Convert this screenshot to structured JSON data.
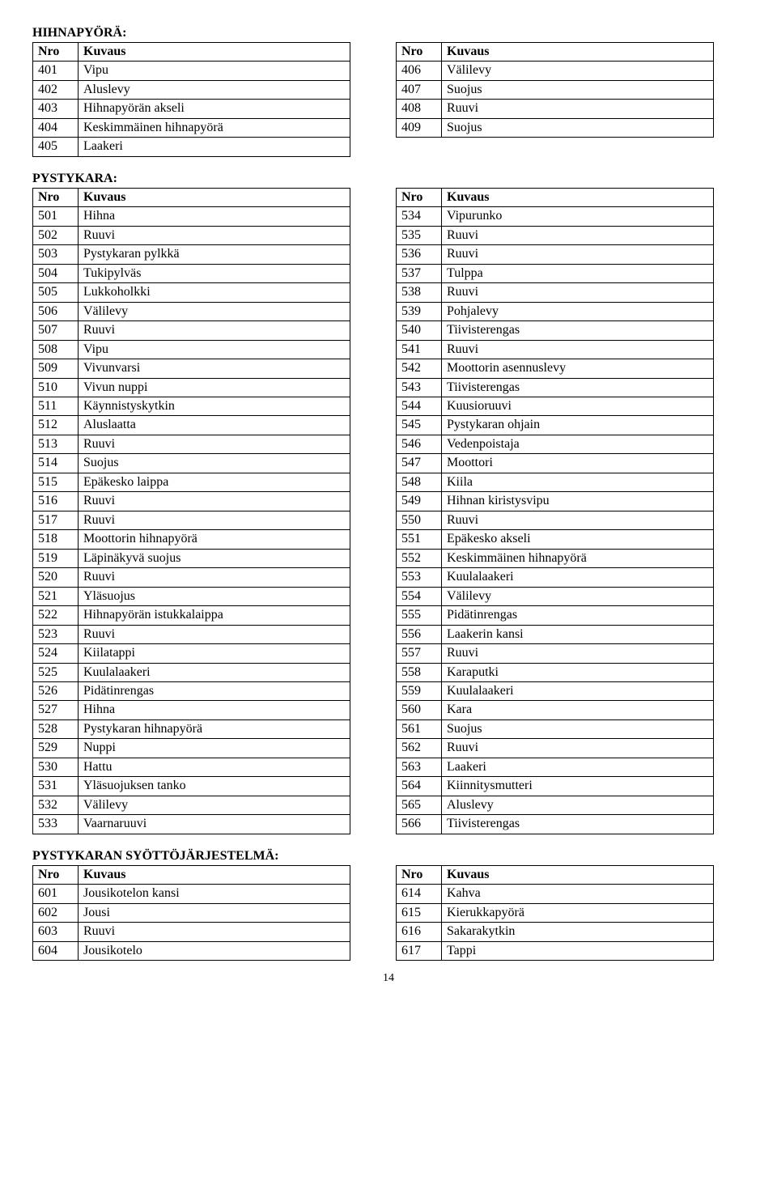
{
  "headers": {
    "nro": "Nro",
    "kuvaus": "Kuvaus"
  },
  "page_number": "14",
  "hihnapyora": {
    "title": "HIHNAPYÖRÄ:",
    "left": [
      {
        "n": "401",
        "t": "Vipu"
      },
      {
        "n": "402",
        "t": "Aluslevy"
      },
      {
        "n": "403",
        "t": "Hihnapyörän akseli"
      },
      {
        "n": "404",
        "t": "Keskimmäinen hihnapyörä"
      },
      {
        "n": "405",
        "t": "Laakeri"
      }
    ],
    "right": [
      {
        "n": "406",
        "t": "Välilevy"
      },
      {
        "n": "407",
        "t": "Suojus"
      },
      {
        "n": "408",
        "t": "Ruuvi"
      },
      {
        "n": "409",
        "t": "Suojus"
      }
    ]
  },
  "pystykara": {
    "title": "PYSTYKARA:",
    "left": [
      {
        "n": "501",
        "t": "Hihna"
      },
      {
        "n": "502",
        "t": "Ruuvi"
      },
      {
        "n": "503",
        "t": "Pystykaran pylkkä"
      },
      {
        "n": "504",
        "t": "Tukipylväs"
      },
      {
        "n": "505",
        "t": "Lukkoholkki"
      },
      {
        "n": "506",
        "t": "Välilevy"
      },
      {
        "n": "507",
        "t": "Ruuvi"
      },
      {
        "n": "508",
        "t": "Vipu"
      },
      {
        "n": "509",
        "t": "Vivunvarsi"
      },
      {
        "n": "510",
        "t": "Vivun nuppi"
      },
      {
        "n": "511",
        "t": "Käynnistyskytkin"
      },
      {
        "n": "512",
        "t": "Aluslaatta"
      },
      {
        "n": "513",
        "t": "Ruuvi"
      },
      {
        "n": "514",
        "t": "Suojus"
      },
      {
        "n": "515",
        "t": "Epäkesko laippa"
      },
      {
        "n": "516",
        "t": "Ruuvi"
      },
      {
        "n": "517",
        "t": "Ruuvi"
      },
      {
        "n": "518",
        "t": "Moottorin hihnapyörä"
      },
      {
        "n": "519",
        "t": "Läpinäkyvä suojus"
      },
      {
        "n": "520",
        "t": "Ruuvi"
      },
      {
        "n": "521",
        "t": "Yläsuojus"
      },
      {
        "n": "522",
        "t": "Hihnapyörän istukkalaippa"
      },
      {
        "n": "523",
        "t": "Ruuvi"
      },
      {
        "n": "524",
        "t": "Kiilatappi"
      },
      {
        "n": "525",
        "t": "Kuulalaakeri"
      },
      {
        "n": "526",
        "t": "Pidätinrengas"
      },
      {
        "n": "527",
        "t": "Hihna"
      },
      {
        "n": "528",
        "t": "Pystykaran hihnapyörä"
      },
      {
        "n": "529",
        "t": "Nuppi"
      },
      {
        "n": "530",
        "t": "Hattu"
      },
      {
        "n": "531",
        "t": "Yläsuojuksen tanko"
      },
      {
        "n": "532",
        "t": "Välilevy"
      },
      {
        "n": "533",
        "t": "Vaarnaruuvi"
      }
    ],
    "right": [
      {
        "n": "534",
        "t": "Vipurunko"
      },
      {
        "n": "535",
        "t": "Ruuvi"
      },
      {
        "n": "536",
        "t": "Ruuvi"
      },
      {
        "n": "537",
        "t": "Tulppa"
      },
      {
        "n": "538",
        "t": "Ruuvi"
      },
      {
        "n": "539",
        "t": "Pohjalevy"
      },
      {
        "n": "540",
        "t": "Tiivisterengas"
      },
      {
        "n": "541",
        "t": "Ruuvi"
      },
      {
        "n": "542",
        "t": "Moottorin asennuslevy"
      },
      {
        "n": "543",
        "t": "Tiivisterengas"
      },
      {
        "n": "544",
        "t": "Kuusioruuvi"
      },
      {
        "n": "545",
        "t": "Pystykaran ohjain"
      },
      {
        "n": "546",
        "t": "Vedenpoistaja"
      },
      {
        "n": "547",
        "t": "Moottori"
      },
      {
        "n": "548",
        "t": "Kiila"
      },
      {
        "n": "549",
        "t": "Hihnan kiristysvipu"
      },
      {
        "n": "550",
        "t": "Ruuvi"
      },
      {
        "n": "551",
        "t": "Epäkesko akseli"
      },
      {
        "n": "552",
        "t": "Keskimmäinen hihnapyörä"
      },
      {
        "n": "553",
        "t": "Kuulalaakeri"
      },
      {
        "n": "554",
        "t": "Välilevy"
      },
      {
        "n": "555",
        "t": "Pidätinrengas"
      },
      {
        "n": "556",
        "t": "Laakerin kansi"
      },
      {
        "n": "557",
        "t": "Ruuvi"
      },
      {
        "n": "558",
        "t": "Karaputki"
      },
      {
        "n": "559",
        "t": "Kuulalaakeri"
      },
      {
        "n": "560",
        "t": "Kara"
      },
      {
        "n": "561",
        "t": "Suojus"
      },
      {
        "n": "562",
        "t": "Ruuvi"
      },
      {
        "n": "563",
        "t": "Laakeri"
      },
      {
        "n": "564",
        "t": "Kiinnitysmutteri"
      },
      {
        "n": "565",
        "t": "Aluslevy"
      },
      {
        "n": "566",
        "t": "Tiivisterengas"
      }
    ]
  },
  "syotto": {
    "title": "PYSTYKARAN SYÖTTÖJÄRJESTELMÄ:",
    "left": [
      {
        "n": "601",
        "t": "Jousikotelon kansi"
      },
      {
        "n": "602",
        "t": "Jousi"
      },
      {
        "n": "603",
        "t": "Ruuvi"
      },
      {
        "n": "604",
        "t": "Jousikotelo"
      }
    ],
    "right": [
      {
        "n": "614",
        "t": "Kahva"
      },
      {
        "n": "615",
        "t": "Kierukkapyörä"
      },
      {
        "n": "616",
        "t": "Sakarakytkin"
      },
      {
        "n": "617",
        "t": "Tappi"
      }
    ]
  }
}
